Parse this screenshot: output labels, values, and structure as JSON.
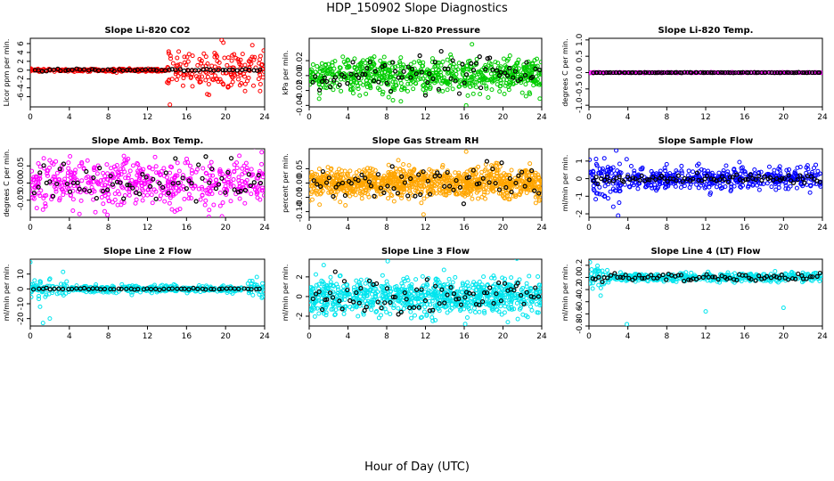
{
  "figure": {
    "title": "HDP_150902  Slope Diagnostics",
    "xlabel": "Hour of Day (UTC)"
  },
  "colors": {
    "black": "#000000"
  },
  "chart_data": [
    {
      "type": "scatter",
      "title": "Slope Li-820 CO2",
      "ylabel": "Licor ppm per min.",
      "color": "#ff0000",
      "xlim": [
        0,
        24
      ],
      "ylim": [
        -8.3,
        7.2
      ],
      "xticks": [
        0,
        4,
        8,
        12,
        16,
        20,
        24
      ],
      "yticks": [
        -6,
        -4,
        -2,
        0,
        2,
        4,
        6
      ],
      "ytick_labels": [
        "-6",
        "-4",
        "-2",
        "0",
        "2",
        "4",
        "6"
      ],
      "colored_series": {
        "phases": [
          [
            0,
            14,
            0.15,
            0.05
          ],
          [
            14,
            15,
            1.5,
            0.25
          ],
          [
            15,
            24,
            2.3,
            0.35
          ]
        ],
        "count": 420,
        "outliers": [
          [
            14.3,
            -7.8
          ],
          [
            19.6,
            6.8
          ],
          [
            15.2,
            4.2
          ]
        ]
      },
      "black_series": {
        "sd": 0.12,
        "count": 60
      }
    },
    {
      "type": "scatter",
      "title": "Slope Li-820 Pressure",
      "ylabel": "kPa per min.",
      "color": "#00cc00",
      "xlim": [
        0,
        24
      ],
      "ylim": [
        -0.042,
        0.05
      ],
      "xticks": [
        0,
        4,
        8,
        12,
        16,
        20,
        24
      ],
      "yticks": [
        -0.04,
        -0.02,
        0,
        0.02
      ],
      "ytick_labels": [
        "-0.04",
        "-0.02",
        "0.00",
        "0.02"
      ],
      "colored_series": {
        "phases": [
          [
            0,
            24,
            0.011,
            0
          ]
        ],
        "count": 700,
        "outliers": [
          [
            8.2,
            -0.029
          ],
          [
            16.2,
            -0.04
          ],
          [
            17.3,
            0.022
          ],
          [
            23.8,
            -0.031
          ],
          [
            16.8,
            0.042
          ]
        ]
      },
      "black_series": {
        "sd": 0.012,
        "count": 80
      }
    },
    {
      "type": "scatter",
      "title": "Slope Li-820 Temp.",
      "ylabel": "degrees C per min.",
      "color": "#ff00ff",
      "xlim": [
        0,
        24
      ],
      "ylim": [
        -1.05,
        1.05
      ],
      "xticks": [
        0,
        4,
        8,
        12,
        16,
        20,
        24
      ],
      "yticks": [
        -1,
        -0.5,
        0,
        0.5,
        1
      ],
      "ytick_labels": [
        "-1.0",
        "-0.5",
        "0.0",
        "0.5",
        "1.0"
      ],
      "colored_series": {
        "phases": [
          [
            0,
            24,
            0.004,
            0
          ]
        ],
        "count": 300,
        "outliers": []
      },
      "black_series": {
        "sd": 0.004,
        "count": 90
      }
    },
    {
      "type": "scatter",
      "title": "Slope Amb. Box Temp.",
      "ylabel": "degrees C per min.",
      "color": "#ff00ff",
      "xlim": [
        0,
        24
      ],
      "ylim": [
        -0.1,
        0.1
      ],
      "xticks": [
        0,
        4,
        8,
        12,
        16,
        20,
        24
      ],
      "yticks": [
        -0.05,
        0,
        0.05
      ],
      "ytick_labels": [
        "-0.05",
        "0.00",
        "0.05"
      ],
      "colored_series": {
        "phases": [
          [
            0,
            24,
            0.032,
            0
          ]
        ],
        "count": 520,
        "outliers": [
          [
            7.9,
            -0.093
          ],
          [
            14.8,
            -0.083
          ],
          [
            23.7,
            0.09
          ]
        ]
      },
      "black_series": {
        "sd": 0.03,
        "count": 70
      }
    },
    {
      "type": "scatter",
      "title": "Slope Gas Stream RH",
      "ylabel": "percent per min.",
      "color": "#ffa500",
      "xlim": [
        0,
        24
      ],
      "ylim": [
        -0.12,
        0.12
      ],
      "xticks": [
        0,
        4,
        8,
        12,
        16,
        20,
        24
      ],
      "yticks": [
        -0.1,
        -0.05,
        0,
        0.05
      ],
      "ytick_labels": [
        "-0.10",
        "-0.05",
        "0.00",
        "0.05"
      ],
      "colored_series": {
        "phases": [
          [
            0,
            24,
            0.025,
            0
          ]
        ],
        "count": 1000,
        "outliers": [
          [
            11.8,
            -0.11
          ],
          [
            16.2,
            0.11
          ],
          [
            9.2,
            0.08
          ]
        ]
      },
      "black_series": {
        "sd": 0.03,
        "count": 70
      }
    },
    {
      "type": "scatter",
      "title": "Slope Sample Flow",
      "ylabel": "ml/min per min.",
      "color": "#0000ff",
      "xlim": [
        0,
        24
      ],
      "ylim": [
        -2.2,
        1.7
      ],
      "xticks": [
        0,
        4,
        8,
        12,
        16,
        20,
        24
      ],
      "yticks": [
        -2,
        -1,
        0,
        1
      ],
      "ytick_labels": [
        "-2",
        "-1",
        "0",
        "1"
      ],
      "colored_series": {
        "phases": [
          [
            0,
            4,
            0.55,
            0
          ],
          [
            4,
            24,
            0.3,
            0
          ]
        ],
        "count": 520,
        "outliers": [
          [
            3.0,
            -2.1
          ],
          [
            2.5,
            -1.6
          ],
          [
            2.8,
            1.6
          ],
          [
            12.5,
            -0.8
          ]
        ]
      },
      "black_series": {
        "sd": 0.12,
        "count": 80
      }
    },
    {
      "type": "scatter",
      "title": "Slope Line 2 Flow",
      "ylabel": "ml/min per min.",
      "color": "#00e5ee",
      "xlim": [
        0,
        24
      ],
      "ylim": [
        -25,
        20
      ],
      "xticks": [
        0,
        4,
        8,
        12,
        16,
        20,
        24
      ],
      "yticks": [
        -20,
        -10,
        0,
        10
      ],
      "ytick_labels": [
        "-20",
        "-10",
        "0",
        "10"
      ],
      "colored_series": {
        "phases": [
          [
            0,
            4,
            3,
            0
          ],
          [
            4,
            22,
            1.2,
            0
          ],
          [
            22,
            24,
            2.5,
            0
          ]
        ],
        "count": 400,
        "outliers": [
          [
            1.3,
            -23
          ],
          [
            2.0,
            -20
          ],
          [
            0,
            18
          ],
          [
            1.0,
            -12
          ],
          [
            23.2,
            8
          ]
        ]
      },
      "black_series": {
        "sd": 0.2,
        "count": 55
      }
    },
    {
      "type": "scatter",
      "title": "Slope Line 3 Flow",
      "ylabel": "ml/min per min.",
      "color": "#00e5ee",
      "xlim": [
        0,
        24
      ],
      "ylim": [
        -3,
        3.8
      ],
      "xticks": [
        0,
        4,
        8,
        12,
        16,
        20,
        24
      ],
      "yticks": [
        -2,
        0,
        2
      ],
      "ytick_labels": [
        "-2",
        "0",
        "2"
      ],
      "colored_series": {
        "phases": [
          [
            0,
            24,
            0.9,
            0
          ]
        ],
        "count": 850,
        "outliers": [
          [
            1.5,
            3.2
          ],
          [
            8.1,
            3.6
          ],
          [
            16.1,
            -2.8
          ],
          [
            20.5,
            -2.6
          ]
        ]
      },
      "black_series": {
        "sd": 0.9,
        "count": 80
      }
    },
    {
      "type": "scatter",
      "title": "Slope Line 4 (LT) Flow",
      "ylabel": "ml/min per min.",
      "color": "#00e5ee",
      "xlim": [
        0,
        24
      ],
      "ylim": [
        -0.8,
        0.3
      ],
      "xticks": [
        0,
        4,
        8,
        12,
        16,
        20,
        24
      ],
      "yticks": [
        -0.8,
        -0.6,
        -0.4,
        -0.2,
        0,
        0.2
      ],
      "ytick_labels": [
        "-0.8",
        "-0.6",
        "-0.4",
        "-0.2",
        "0.0",
        "0.2"
      ],
      "colored_series": {
        "phases": [
          [
            0,
            2,
            0.08,
            0.02
          ],
          [
            2,
            24,
            0.035,
            0
          ]
        ],
        "count": 420,
        "outliers": [
          [
            3.9,
            -0.77
          ],
          [
            12.0,
            -0.56
          ],
          [
            20.0,
            -0.5
          ],
          [
            1.2,
            -0.3
          ],
          [
            0.1,
            0.25
          ]
        ]
      },
      "black_series": {
        "sd": 0.03,
        "count": 75
      }
    }
  ]
}
